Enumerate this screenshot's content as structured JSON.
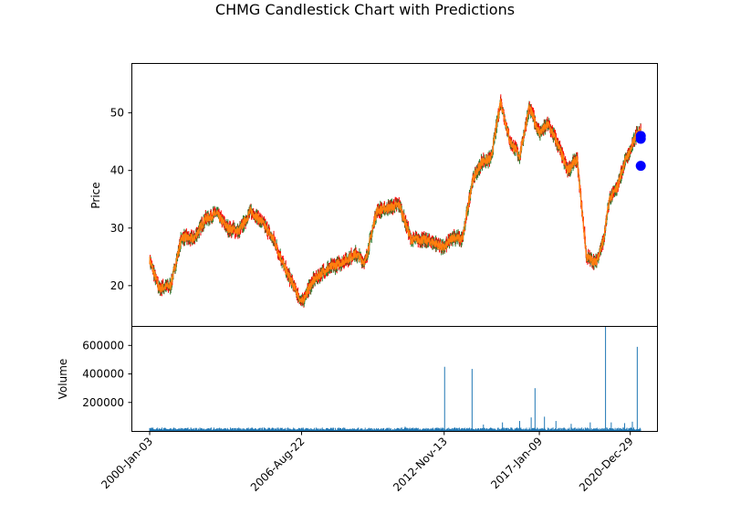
{
  "chart_data": {
    "type": "candlestick",
    "title": "CHMG Candlestick Chart with Predictions",
    "price_panel": {
      "ylabel": "Price",
      "ylim": [
        13,
        58.5
      ],
      "yticks": [
        20,
        30,
        40,
        50
      ],
      "up_color": "#2e7d32",
      "down_color": "#ff0000",
      "close_line_color": "#ff7f0e",
      "prediction_color": "#0000ff",
      "close_series": {
        "name": "",
        "x": [
          "2000-01-03",
          "2000-06-01",
          "2000-12-01",
          "2001-06-01",
          "2001-12-01",
          "2002-06-01",
          "2002-12-01",
          "2003-06-01",
          "2003-12-01",
          "2004-06-01",
          "2004-12-01",
          "2005-06-01",
          "2005-12-01",
          "2006-06-01",
          "2006-08-22",
          "2007-02-01",
          "2007-08-01",
          "2008-02-01",
          "2008-08-01",
          "2009-01-01",
          "2009-06-01",
          "2009-12-01",
          "2010-06-01",
          "2010-12-01",
          "2011-06-01",
          "2011-12-01",
          "2012-06-01",
          "2012-11-13",
          "2013-04-01",
          "2013-09-01",
          "2014-02-01",
          "2014-07-01",
          "2014-12-01",
          "2015-05-01",
          "2015-10-01",
          "2016-03-01",
          "2016-08-01",
          "2017-01-09",
          "2017-06-01",
          "2017-11-01",
          "2018-04-01",
          "2018-09-01",
          "2019-02-01",
          "2019-07-01",
          "2019-11-01",
          "2020-02-01",
          "2020-06-01",
          "2020-10-01",
          "2020-12-29",
          "2021-04-01",
          "2021-06-15"
        ],
        "y": [
          24.5,
          19.5,
          20,
          28.5,
          28,
          31.5,
          32.5,
          30,
          29.5,
          33,
          31,
          28,
          23,
          19,
          17,
          20.5,
          22.5,
          23.5,
          24.5,
          25.5,
          24,
          33,
          33.5,
          34,
          28,
          28,
          27.5,
          26.5,
          28.5,
          28,
          38,
          41.5,
          42,
          52,
          45,
          42.5,
          51,
          46.5,
          48,
          44.5,
          40,
          42,
          25,
          24,
          28,
          35,
          37,
          41.5,
          43.5,
          46,
          47
        ]
      },
      "predictions": [
        {
          "x": "2021-06-15",
          "y": 46
        },
        {
          "x": "2021-06-15",
          "y": 45.5
        },
        {
          "x": "2021-06-15",
          "y": 40.8
        }
      ]
    },
    "volume_panel": {
      "ylabel": "Volume",
      "ylim": [
        0,
        730000
      ],
      "yticks": [
        200000,
        400000,
        600000
      ],
      "ytick_labels": [
        "200000",
        "400000",
        "600000"
      ],
      "bar_color": "#1f77b4",
      "baseline_volume": 15000,
      "spikes": [
        {
          "x": "2005-06-01",
          "value": 20000
        },
        {
          "x": "2011-03-01",
          "value": 30000
        },
        {
          "x": "2012-11-20",
          "value": 450000
        },
        {
          "x": "2013-05-01",
          "value": 25000
        },
        {
          "x": "2014-02-01",
          "value": 435000
        },
        {
          "x": "2014-08-01",
          "value": 45000
        },
        {
          "x": "2015-06-01",
          "value": 60000
        },
        {
          "x": "2016-03-01",
          "value": 70000
        },
        {
          "x": "2016-09-01",
          "value": 95000
        },
        {
          "x": "2016-11-01",
          "value": 300000
        },
        {
          "x": "2017-04-01",
          "value": 100000
        },
        {
          "x": "2017-10-01",
          "value": 70000
        },
        {
          "x": "2018-06-01",
          "value": 50000
        },
        {
          "x": "2019-04-01",
          "value": 60000
        },
        {
          "x": "2019-12-01",
          "value": 730000
        },
        {
          "x": "2020-03-01",
          "value": 60000
        },
        {
          "x": "2020-10-01",
          "value": 55000
        },
        {
          "x": "2021-02-01",
          "value": 65000
        },
        {
          "x": "2021-04-20",
          "value": 590000
        }
      ]
    },
    "xaxis": {
      "ticks": [
        "2000-01-03",
        "2006-08-22",
        "2012-11-13",
        "2017-01-09",
        "2020-12-29"
      ],
      "tick_labels": [
        "2000-Jan-03",
        "2006-Aug-22",
        "2012-Nov-13",
        "2017-Jan-09",
        "2020-Dec-29"
      ],
      "xlim": [
        "1999-04-01",
        "2022-03-01"
      ]
    },
    "grid": false,
    "legend": false
  }
}
